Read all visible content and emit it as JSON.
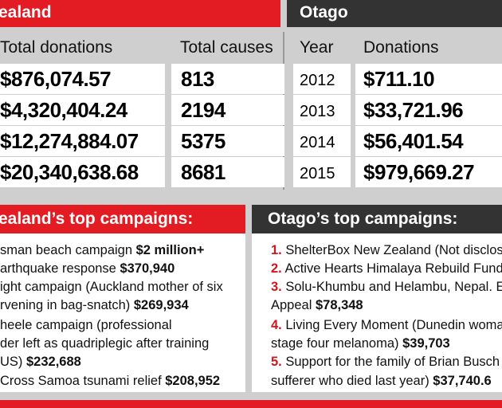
{
  "colors": {
    "red": "#e31b23",
    "dark": "#333333",
    "grey": "#cfcfcf"
  },
  "nz_header": "ealand",
  "otago_header": "Otago",
  "nz_table": {
    "col1": "Total donations",
    "col2": "Total causes",
    "rows": [
      {
        "donations": "$876,074.57",
        "causes": "813"
      },
      {
        "donations": "$4,320,404.24",
        "causes": "2194"
      },
      {
        "donations": "$12,274,884.07",
        "causes": "5375"
      },
      {
        "donations": "$20,340,638.68",
        "causes": "8681"
      }
    ]
  },
  "otago_table": {
    "col1": "Year",
    "col2": "Donations",
    "rows": [
      {
        "year": "2012",
        "donations": "$711.10"
      },
      {
        "year": "2013",
        "donations": "$33,721.96"
      },
      {
        "year": "2014",
        "donations": "$56,401.54"
      },
      {
        "year": "2015",
        "donations": "$979,669.27"
      }
    ]
  },
  "nz_campaigns_title": "ealand’s top campaigns:",
  "otago_campaigns_title": "Otago’s top campaigns:",
  "nz_campaign_lines": [
    {
      "text": "sman beach campaign ",
      "bold": "$2 million+"
    },
    {
      "text": "arthquake response ",
      "bold": "$370,940"
    },
    {
      "text": "ight campaign (Auckland mother of six",
      "bold": ""
    },
    {
      "text": "rvening in bag-snatch) ",
      "bold": "$269,934"
    },
    {
      "text": "heele campaign (professional",
      "bold": ""
    },
    {
      "text": "der left as quadriplegic after training",
      "bold": ""
    },
    {
      "text": " US) ",
      "bold": "$232,688"
    },
    {
      "text": "Cross Samoa tsunami relief ",
      "bold": "$208,952"
    }
  ],
  "otago_campaign_lines": [
    {
      "num": "1.",
      "text": " ShelterBox New Zealand (Not disclos",
      "bold": ""
    },
    {
      "num": "2.",
      "text": " Active Hearts Himalaya Rebuild Fund",
      "bold": ""
    },
    {
      "num": "3.",
      "text": " Solu-Khumbu and Helambu, Nepal. Ea",
      "bold": ""
    },
    {
      "num": "",
      "text": "Appeal ",
      "bold": "$78,348"
    },
    {
      "num": "4.",
      "text": " Living Every Moment (Dunedin woma",
      "bold": ""
    },
    {
      "num": "",
      "text": "stage four melanoma) ",
      "bold": "$39,703"
    },
    {
      "num": "5.",
      "text": " Support for the family of Brian Busch",
      "bold": ""
    },
    {
      "num": "",
      "text": "sufferer who died last year) ",
      "bold": "$37,740.6"
    }
  ]
}
